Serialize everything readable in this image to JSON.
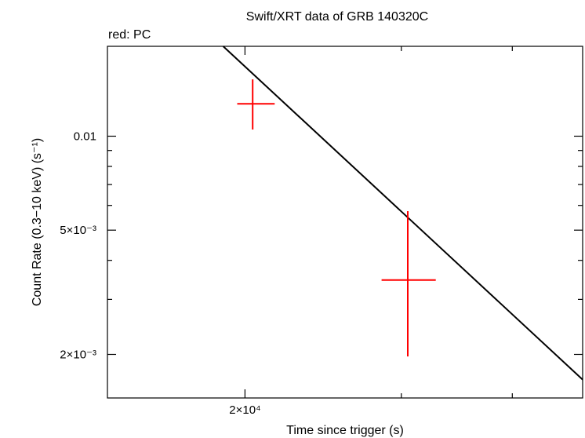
{
  "chart_data": {
    "type": "scatter",
    "title": "Swift/XRT data of GRB 140320C",
    "subtitle": "red: PC",
    "xlabel": "Time since trigger (s)",
    "ylabel": "Count Rate (0.3−10 keV) (s⁻¹)",
    "x_scale": "log",
    "y_scale": "log",
    "xlim": [
      14000,
      48000
    ],
    "ylim": [
      0.00145,
      0.0194
    ],
    "x_tick_labels": [
      {
        "value": 20000,
        "label": "2×10⁴"
      }
    ],
    "y_tick_labels": [
      {
        "value": 0.01,
        "label": "0.01"
      },
      {
        "value": 0.005,
        "label": "5×10⁻³"
      },
      {
        "value": 0.002,
        "label": "2×10⁻³"
      }
    ],
    "series": [
      {
        "name": "PC",
        "color": "#ff0000",
        "points": [
          {
            "x": 20400,
            "y": 0.0127,
            "xerr": [
              19600,
              21600
            ],
            "yerr": [
              0.0105,
              0.0152
            ]
          },
          {
            "x": 30500,
            "y": 0.00346,
            "xerr": [
              28500,
              32800
            ],
            "yerr": [
              0.00197,
              0.00575
            ]
          }
        ]
      }
    ],
    "model": {
      "type": "power-law",
      "color": "#000000",
      "points": [
        {
          "x": 18900,
          "y": 0.0194
        },
        {
          "x": 48000,
          "y": 0.00166
        }
      ]
    },
    "grid": false,
    "legend": "none"
  }
}
